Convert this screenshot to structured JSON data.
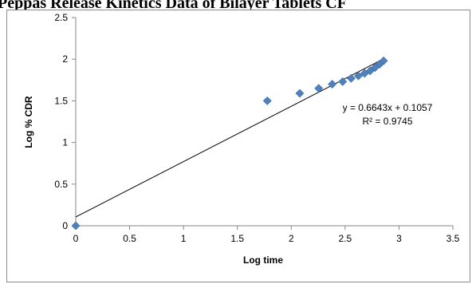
{
  "page": {
    "title": "Peppas Release Kinetics Data of Bilayer Tablets CF"
  },
  "chart_data": {
    "type": "scatter",
    "title": "",
    "xlabel": "Log time",
    "ylabel": "Log % CDR",
    "xlim": [
      0,
      3.5
    ],
    "ylim": [
      0,
      2.5
    ],
    "x_ticks": [
      "0",
      "0.5",
      "1",
      "1.5",
      "2",
      "2.5",
      "3",
      "3.5"
    ],
    "y_ticks": [
      "0",
      "0.5",
      "1",
      "1.5",
      "2",
      "2.5"
    ],
    "grid": false,
    "legend": "none",
    "marker_color": "#4f81bd",
    "trendline_color": "#000000",
    "series": [
      {
        "x": [
          0,
          1.778,
          2.079,
          2.255,
          2.38,
          2.477,
          2.556,
          2.623,
          2.681,
          2.732,
          2.778,
          2.82,
          2.857
        ],
        "y": [
          0,
          1.5,
          1.59,
          1.65,
          1.7,
          1.73,
          1.77,
          1.8,
          1.83,
          1.86,
          1.9,
          1.94,
          1.98
        ]
      }
    ],
    "trendline": {
      "slope": 0.6643,
      "intercept": 0.1057,
      "x_range": [
        0,
        2.86
      ]
    },
    "annotations": {
      "equation": "y = 0.6643x + 0.1057",
      "r_squared": "R² = 0.9745"
    }
  }
}
